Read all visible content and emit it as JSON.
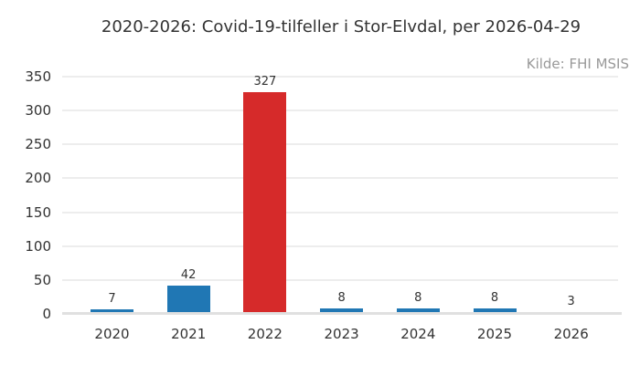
{
  "chart_data": {
    "type": "bar",
    "title": "2020-2026: Covid-19-tilfeller i Stor-Elvdal, per 2026-04-29",
    "source_note": "Kilde: FHI MSIS",
    "categories": [
      "2020",
      "2021",
      "2022",
      "2023",
      "2024",
      "2025",
      "2026"
    ],
    "values": [
      7,
      42,
      327,
      8,
      8,
      8,
      3
    ],
    "bar_colors": [
      "#2077b4",
      "#2077b4",
      "#d62a2a",
      "#2077b4",
      "#2077b4",
      "#2077b4",
      "#2077b4"
    ],
    "default_bar_color": "#2077b4",
    "highlight_bar_color": "#d62a2a",
    "highlighted_category": "2022",
    "xlabel": "",
    "ylabel": "",
    "ylim": [
      0,
      350
    ],
    "yticks": [
      0,
      50,
      100,
      150,
      200,
      250,
      300,
      350
    ],
    "grid": true,
    "legend": false
  },
  "colors": {
    "gridline": "#ededed",
    "axis_line": "#e0e0e0",
    "text": "#333333",
    "muted_text": "#999999",
    "background": "#ffffff"
  }
}
